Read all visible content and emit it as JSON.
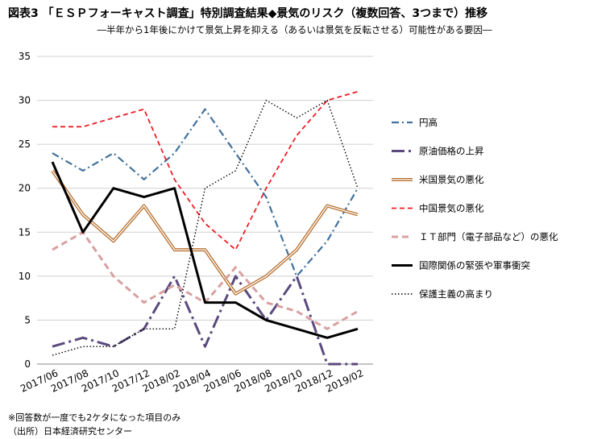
{
  "header": {
    "title": "図表3 「ＥＳＰフォーキャスト調査」特別調査結果◆景気のリスク（複数回答、3つまで）推移",
    "subtitle": "―半年から1年後にかけて景気上昇を抑える（あるいは景気を反転させる）可能性がある要因―"
  },
  "footer": {
    "note": "※回答数が一度でも2ケタになった項目のみ",
    "source": "（出所）日本経済研究センター"
  },
  "chart_data": {
    "type": "line",
    "title": "",
    "xlabel": "",
    "ylabel": "",
    "ylim": [
      0,
      35
    ],
    "yticks": [
      0,
      5,
      10,
      15,
      20,
      25,
      30,
      35
    ],
    "grid": true,
    "legend_position": "right",
    "x": [
      "2017/06",
      "2017/08",
      "2017/10",
      "2017/12",
      "2018/02",
      "2018/04",
      "2018/06",
      "2018/08",
      "2018/10",
      "2018/12",
      "2019/02"
    ],
    "series": [
      {
        "name": "円高",
        "color": "#41719C",
        "style": "dashdot",
        "values": [
          24,
          22,
          24,
          21,
          24,
          29,
          24,
          19,
          10,
          14,
          20
        ]
      },
      {
        "name": "原油価格の上昇",
        "color": "#5B4A7E",
        "style": "longdashdot",
        "values": [
          2,
          3,
          2,
          4,
          10,
          2,
          10,
          5,
          10,
          0,
          0
        ]
      },
      {
        "name": "米国景気の悪化",
        "color": "#B87333",
        "style": "double",
        "values": [
          22,
          17,
          14,
          18,
          13,
          13,
          8,
          10,
          13,
          18,
          17
        ]
      },
      {
        "name": "中国景気の悪化",
        "color": "#EE1C25",
        "style": "dashed",
        "values": [
          27,
          27,
          28,
          29,
          21,
          16,
          13,
          20,
          26,
          30,
          31
        ]
      },
      {
        "name": "ＩＴ部門（電子部品など）の悪化",
        "color": "#D9A0A0",
        "style": "thickdash",
        "values": [
          13,
          15,
          10,
          7,
          9,
          7,
          11,
          7,
          6,
          4,
          6
        ]
      },
      {
        "name": "国際関係の緊張や軍事衝突",
        "color": "#000000",
        "style": "thick",
        "values": [
          23,
          15,
          20,
          19,
          20,
          7,
          7,
          5,
          4,
          3,
          4
        ]
      },
      {
        "name": "保護主義の高まり",
        "color": "#000000",
        "style": "dotted",
        "values": [
          1,
          2,
          2,
          4,
          4,
          20,
          22,
          30,
          28,
          30,
          20
        ]
      }
    ]
  }
}
